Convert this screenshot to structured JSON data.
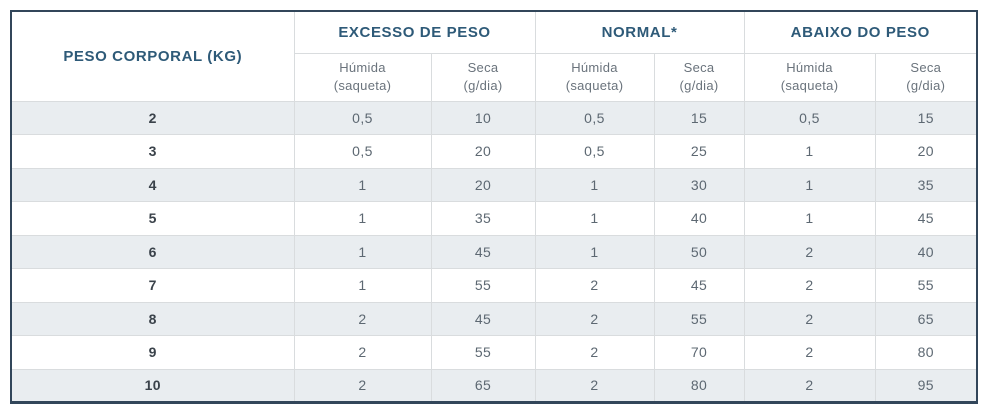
{
  "table": {
    "corner_header": "PESO CORPORAL (KG)",
    "groups": [
      {
        "label": "EXCESSO DE PESO",
        "columns": [
          {
            "name": "Húmida",
            "unit": "(saqueta)"
          },
          {
            "name": "Seca",
            "unit": "(g/dia)"
          }
        ]
      },
      {
        "label": "NORMAL*",
        "columns": [
          {
            "name": "Húmida",
            "unit": "(saqueta)"
          },
          {
            "name": "Seca",
            "unit": "(g/dia)"
          }
        ]
      },
      {
        "label": "ABAIXO DO PESO",
        "columns": [
          {
            "name": "Húmida",
            "unit": "(saqueta)"
          },
          {
            "name": "Seca",
            "unit": "(g/dia)"
          }
        ]
      }
    ],
    "rows": [
      {
        "weight": "2",
        "values": [
          "0,5",
          "10",
          "0,5",
          "15",
          "0,5",
          "15"
        ]
      },
      {
        "weight": "3",
        "values": [
          "0,5",
          "20",
          "0,5",
          "25",
          "1",
          "20"
        ]
      },
      {
        "weight": "4",
        "values": [
          "1",
          "20",
          "1",
          "30",
          "1",
          "35"
        ]
      },
      {
        "weight": "5",
        "values": [
          "1",
          "35",
          "1",
          "40",
          "1",
          "45"
        ]
      },
      {
        "weight": "6",
        "values": [
          "1",
          "45",
          "1",
          "50",
          "2",
          "40"
        ]
      },
      {
        "weight": "7",
        "values": [
          "1",
          "55",
          "2",
          "45",
          "2",
          "55"
        ]
      },
      {
        "weight": "8",
        "values": [
          "2",
          "45",
          "2",
          "55",
          "2",
          "65"
        ]
      },
      {
        "weight": "9",
        "values": [
          "2",
          "55",
          "2",
          "70",
          "2",
          "80"
        ]
      },
      {
        "weight": "10",
        "values": [
          "2",
          "65",
          "2",
          "80",
          "2",
          "95"
        ]
      }
    ],
    "colors": {
      "outer_border": "#32465a",
      "grid_line": "#d9dcde",
      "header_text": "#2e5a78",
      "subheader_text": "#6a737c",
      "weight_text": "#3a424a",
      "value_text": "#5d6872",
      "stripe_bg": "#e9edf0",
      "row_bg": "#ffffff"
    }
  },
  "chart_data": {
    "type": "table",
    "title": "",
    "columns": [
      "PESO CORPORAL (KG)",
      "EXCESSO DE PESO — Húmida (saqueta)",
      "EXCESSO DE PESO — Seca (g/dia)",
      "NORMAL* — Húmida (saqueta)",
      "NORMAL* — Seca (g/dia)",
      "ABAIXO DO PESO — Húmida (saqueta)",
      "ABAIXO DO PESO — Seca (g/dia)"
    ],
    "rows": [
      [
        2,
        0.5,
        10,
        0.5,
        15,
        0.5,
        15
      ],
      [
        3,
        0.5,
        20,
        0.5,
        25,
        1,
        20
      ],
      [
        4,
        1,
        20,
        1,
        30,
        1,
        35
      ],
      [
        5,
        1,
        35,
        1,
        40,
        1,
        45
      ],
      [
        6,
        1,
        45,
        1,
        50,
        2,
        40
      ],
      [
        7,
        1,
        55,
        2,
        45,
        2,
        55
      ],
      [
        8,
        2,
        45,
        2,
        55,
        2,
        65
      ],
      [
        9,
        2,
        55,
        2,
        70,
        2,
        80
      ],
      [
        10,
        2,
        65,
        2,
        80,
        2,
        95
      ]
    ],
    "notes": "decimal comma used in source; striped rows alternate starting at weight 2"
  }
}
